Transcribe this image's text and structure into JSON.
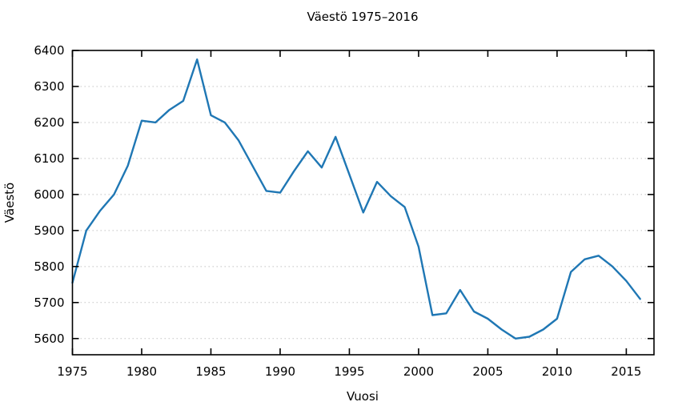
{
  "title": "Väestö 1975–2016",
  "chart_data": {
    "type": "line",
    "title": "Väestö 1975–2016",
    "xlabel": "Vuosi",
    "ylabel": "Väestö",
    "x": [
      1975,
      1976,
      1977,
      1978,
      1979,
      1980,
      1981,
      1982,
      1983,
      1984,
      1985,
      1986,
      1987,
      1988,
      1989,
      1990,
      1991,
      1992,
      1993,
      1994,
      1995,
      1996,
      1997,
      1998,
      1999,
      2000,
      2001,
      2002,
      2003,
      2004,
      2005,
      2006,
      2007,
      2008,
      2009,
      2010,
      2011,
      2012,
      2013,
      2014,
      2015,
      2016
    ],
    "values": [
      5755,
      5900,
      5955,
      6000,
      6080,
      6205,
      6200,
      6235,
      6260,
      6375,
      6220,
      6200,
      6150,
      6080,
      6010,
      6005,
      6065,
      6120,
      6075,
      6160,
      6055,
      5950,
      6035,
      5995,
      5965,
      5855,
      5665,
      5670,
      5735,
      5675,
      5655,
      5625,
      5600,
      5605,
      5625,
      5655,
      5785,
      5820,
      5830,
      5800,
      5760,
      5710
    ],
    "xlim": [
      1975,
      2017
    ],
    "ylim": [
      5555,
      6400
    ],
    "xticks": [
      1975,
      1980,
      1985,
      1990,
      1995,
      2000,
      2005,
      2010,
      2015
    ],
    "yticks": [
      5600,
      5700,
      5800,
      5900,
      6000,
      6100,
      6200,
      6300,
      6400
    ],
    "grid": "horizontal-dotted",
    "legend": "none",
    "line_color": "#1f77b4",
    "grid_color": "#c4c4c4",
    "frame_color": "#000000",
    "background": "#ffffff"
  }
}
